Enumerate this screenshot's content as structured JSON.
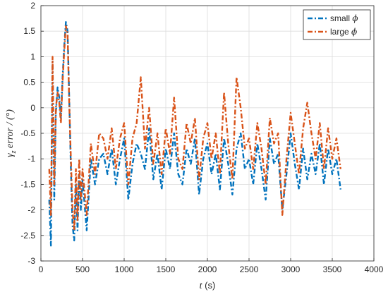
{
  "chart_data": {
    "type": "line",
    "title": "",
    "xlabel": {
      "var": "t",
      "unit": " (s)"
    },
    "ylabel": {
      "var": "γ",
      "sub": "z",
      "rest": " error  / (°)"
    },
    "xlim": [
      0,
      4000
    ],
    "ylim": [
      -3,
      2
    ],
    "xticks": [
      "0",
      "500",
      "1000",
      "1500",
      "2000",
      "2500",
      "3000",
      "3500",
      "4000"
    ],
    "yticks": [
      "-3",
      "-2.5",
      "-2",
      "-1.5",
      "-1",
      "-0.5",
      "0",
      "0.5",
      "1",
      "1.5",
      "2"
    ],
    "grid": true,
    "legend_position": "top-right",
    "series": [
      {
        "name": "small",
        "symbol": "ϕ",
        "color": "#0072BD",
        "x": [
          100,
          120,
          140,
          160,
          180,
          200,
          220,
          240,
          260,
          280,
          300,
          320,
          340,
          360,
          380,
          400,
          420,
          440,
          460,
          480,
          500,
          550,
          600,
          650,
          700,
          750,
          800,
          850,
          900,
          950,
          1000,
          1050,
          1100,
          1150,
          1200,
          1250,
          1300,
          1350,
          1400,
          1450,
          1500,
          1550,
          1600,
          1650,
          1700,
          1750,
          1800,
          1850,
          1900,
          1950,
          2000,
          2050,
          2100,
          2150,
          2200,
          2250,
          2300,
          2350,
          2400,
          2450,
          2500,
          2550,
          2600,
          2650,
          2700,
          2750,
          2800,
          2850,
          2900,
          2950,
          3000,
          3050,
          3100,
          3150,
          3200,
          3250,
          3300,
          3350,
          3400,
          3450,
          3500,
          3550,
          3600
        ],
        "y": [
          -1.8,
          -2.7,
          0.9,
          -1.8,
          -0.1,
          0.4,
          0.2,
          -0.2,
          0.6,
          1.2,
          1.68,
          1.5,
          0.2,
          -1.2,
          -2.3,
          -2.6,
          -1.5,
          -2.4,
          -1.3,
          -2.0,
          -1.4,
          -2.4,
          -1.0,
          -1.5,
          -1.0,
          -0.9,
          -1.3,
          -0.8,
          -1.5,
          -1.0,
          -0.6,
          -1.8,
          -1.1,
          -0.7,
          -0.9,
          -1.2,
          -0.4,
          -1.4,
          -0.9,
          -1.6,
          -0.8,
          -1.2,
          -0.5,
          -1.3,
          -1.5,
          -0.8,
          -1.1,
          -0.6,
          -1.7,
          -1.0,
          -0.7,
          -1.3,
          -0.9,
          -1.6,
          -0.6,
          -1.1,
          -1.7,
          -0.8,
          -0.5,
          -1.2,
          -1.0,
          -1.5,
          -0.7,
          -1.2,
          -1.8,
          -0.6,
          -1.1,
          -0.9,
          -2.0,
          -1.3,
          -0.5,
          -1.1,
          -1.6,
          -0.8,
          -1.4,
          -0.9,
          -1.3,
          -0.7,
          -1.5,
          -0.8,
          -1.3,
          -1.0,
          -1.6
        ]
      },
      {
        "name": "large",
        "symbol": "ϕ",
        "color": "#D95319",
        "x": [
          100,
          120,
          140,
          160,
          180,
          200,
          220,
          240,
          260,
          280,
          300,
          320,
          340,
          360,
          380,
          400,
          420,
          440,
          460,
          480,
          500,
          550,
          600,
          650,
          700,
          750,
          800,
          850,
          900,
          950,
          1000,
          1050,
          1100,
          1150,
          1200,
          1250,
          1300,
          1350,
          1400,
          1450,
          1500,
          1550,
          1600,
          1650,
          1700,
          1750,
          1800,
          1850,
          1900,
          1950,
          2000,
          2050,
          2100,
          2150,
          2200,
          2250,
          2300,
          2350,
          2400,
          2450,
          2500,
          2550,
          2600,
          2650,
          2700,
          2750,
          2800,
          2850,
          2900,
          2950,
          3000,
          3050,
          3100,
          3150,
          3200,
          3250,
          3300,
          3350,
          3400,
          3450,
          3500,
          3550,
          3600
        ],
        "y": [
          -1.2,
          -2.1,
          1.0,
          -1.5,
          0.0,
          0.3,
          0.1,
          -0.3,
          0.5,
          1.1,
          1.6,
          1.45,
          0.1,
          -1.0,
          -2.0,
          -2.4,
          -1.2,
          -2.2,
          -1.0,
          -1.8,
          -1.2,
          -2.1,
          -0.7,
          -1.3,
          -0.5,
          -0.6,
          -1.0,
          -0.4,
          -1.2,
          -0.6,
          -0.3,
          -1.5,
          -0.6,
          -0.3,
          0.6,
          -0.8,
          0.0,
          -1.1,
          -0.5,
          -1.3,
          -0.4,
          -0.9,
          0.2,
          -1.0,
          -1.2,
          -0.3,
          -0.7,
          -0.2,
          -1.4,
          -0.6,
          -0.3,
          -1.0,
          -0.5,
          -1.3,
          0.3,
          -0.7,
          -1.4,
          0.6,
          0.0,
          -0.8,
          -0.6,
          -1.2,
          -0.3,
          -0.8,
          -1.5,
          -0.2,
          -0.7,
          -0.5,
          -2.1,
          -1.0,
          -0.1,
          -0.7,
          -1.3,
          -0.4,
          0.1,
          -0.5,
          -1.0,
          -0.3,
          -1.2,
          -0.4,
          -1.0,
          -0.6,
          -1.2
        ]
      }
    ]
  }
}
